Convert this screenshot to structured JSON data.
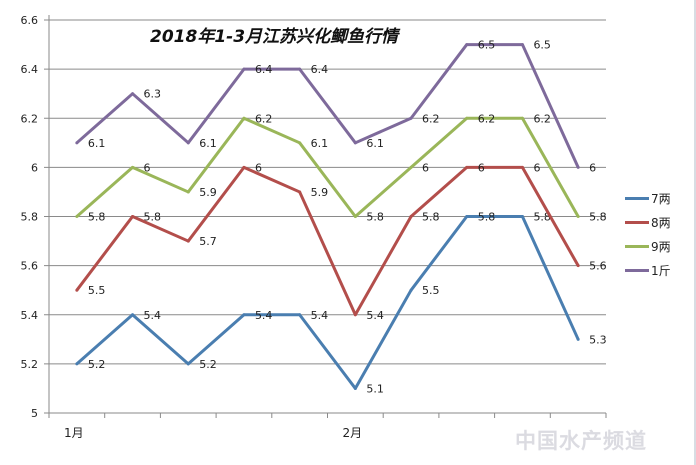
{
  "chart_data": {
    "type": "line",
    "title": "2018年1-3月江苏兴化鲫鱼行情",
    "xlabel": "",
    "ylabel": "",
    "ylim": [
      5,
      6.6
    ],
    "yticks": [
      "6.6",
      "6.4",
      "6.2",
      "6",
      "5.8",
      "5.6",
      "5.4",
      "5.2",
      "5"
    ],
    "ytick_values": [
      6.6,
      6.4,
      6.2,
      6.0,
      5.8,
      5.6,
      5.4,
      5.2,
      5.0
    ],
    "x_tick_labels": [
      {
        "index": 0,
        "label": "1月"
      },
      {
        "index": 5,
        "label": "2月"
      }
    ],
    "grid": true,
    "legend_position": "right",
    "series": [
      {
        "name": "7两",
        "color": "#4a7eb0",
        "values": [
          5.2,
          5.4,
          5.2,
          5.4,
          5.4,
          5.1,
          5.5,
          5.8,
          5.8,
          5.3
        ],
        "labels": [
          "5.2",
          "5.4",
          "5.2",
          "5.4",
          "5.4",
          "5.1",
          "5.5",
          "5.8",
          "5.8",
          "5.3"
        ]
      },
      {
        "name": "8两",
        "color": "#b34e4b",
        "values": [
          5.5,
          5.8,
          5.7,
          6.0,
          5.9,
          5.4,
          5.8,
          6.0,
          6.0,
          5.6
        ],
        "labels": [
          "5.5",
          "5.8",
          "5.7",
          "6",
          "5.9",
          "5.4",
          "5.8",
          "6",
          "6",
          "5.6"
        ]
      },
      {
        "name": "9两",
        "color": "#9ab659",
        "values": [
          5.8,
          6.0,
          5.9,
          6.2,
          6.1,
          5.8,
          6.0,
          6.2,
          6.2,
          5.8
        ],
        "labels": [
          "5.8",
          "6",
          "5.9",
          "6.2",
          "6.1",
          "5.8",
          "6",
          "6.2",
          "6.2",
          "5.8"
        ]
      },
      {
        "name": "1斤",
        "color": "#7e6a9b",
        "values": [
          6.1,
          6.3,
          6.1,
          6.4,
          6.4,
          6.1,
          6.2,
          6.5,
          6.5,
          6.0
        ],
        "labels": [
          "6.1",
          "6.3",
          "6.1",
          "6.4",
          "6.4",
          "6.1",
          "6.2",
          "6.5",
          "6.5",
          "6"
        ]
      }
    ]
  },
  "watermark": "中国水产频道"
}
